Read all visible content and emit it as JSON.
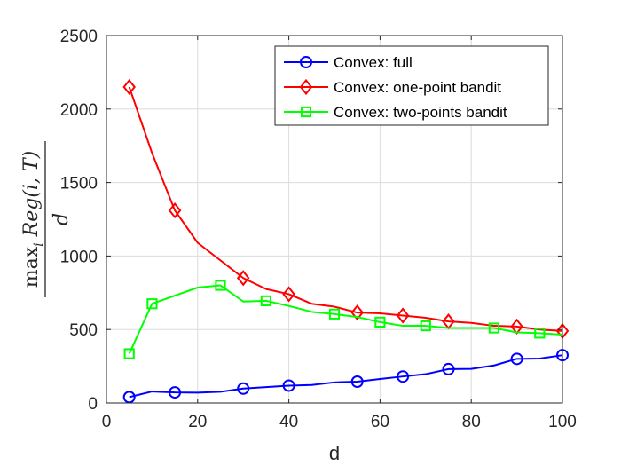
{
  "chart_data": {
    "type": "line",
    "title": "",
    "xlabel": "d",
    "ylabel": {
      "numerator_op": "max",
      "numerator_sub": "i",
      "numerator_expr": "Reg(i, T)",
      "denominator": "d"
    },
    "xlim": [
      0,
      100
    ],
    "ylim": [
      0,
      2500
    ],
    "xticks": [
      0,
      20,
      40,
      60,
      80,
      100
    ],
    "yticks": [
      0,
      500,
      1000,
      1500,
      2000,
      2500
    ],
    "grid": true,
    "legend_position": "top-right",
    "series": [
      {
        "name": "Convex: full",
        "color": "#0000ff",
        "marker": "circle",
        "x": [
          5,
          10,
          15,
          20,
          25,
          30,
          35,
          40,
          45,
          50,
          55,
          60,
          65,
          70,
          75,
          80,
          85,
          90,
          95,
          100
        ],
        "y": [
          40,
          78,
          72,
          70,
          76,
          98,
          108,
          118,
          122,
          140,
          145,
          163,
          180,
          196,
          230,
          232,
          255,
          300,
          302,
          325
        ],
        "marker_x": [
          5,
          15,
          30,
          40,
          55,
          65,
          75,
          90,
          100
        ],
        "marker_y": [
          40,
          72,
          98,
          118,
          145,
          180,
          230,
          300,
          325
        ]
      },
      {
        "name": "Convex: one-point bandit",
        "color": "#ff0000",
        "marker": "diamond",
        "x": [
          5,
          10,
          15,
          20,
          25,
          30,
          35,
          40,
          45,
          50,
          55,
          60,
          65,
          70,
          75,
          80,
          85,
          90,
          95,
          100
        ],
        "y": [
          2150,
          1700,
          1310,
          1090,
          970,
          850,
          775,
          740,
          675,
          655,
          615,
          610,
          595,
          580,
          555,
          545,
          525,
          520,
          500,
          490
        ],
        "marker_x": [
          5,
          15,
          30,
          40,
          55,
          65,
          75,
          90,
          100
        ],
        "marker_y": [
          2150,
          1310,
          850,
          740,
          615,
          595,
          555,
          520,
          490
        ]
      },
      {
        "name": "Convex: two-points bandit",
        "color": "#00ff00",
        "marker": "square",
        "x": [
          5,
          10,
          15,
          20,
          25,
          30,
          35,
          40,
          45,
          50,
          55,
          60,
          65,
          70,
          75,
          80,
          85,
          90,
          95,
          100
        ],
        "y": [
          335,
          675,
          730,
          785,
          800,
          690,
          695,
          660,
          620,
          605,
          585,
          550,
          525,
          525,
          510,
          510,
          510,
          480,
          475,
          465
        ],
        "marker_x": [
          5,
          10,
          25,
          35,
          50,
          60,
          70,
          85,
          95
        ],
        "marker_y": [
          335,
          675,
          800,
          695,
          605,
          550,
          525,
          510,
          475
        ]
      }
    ]
  }
}
